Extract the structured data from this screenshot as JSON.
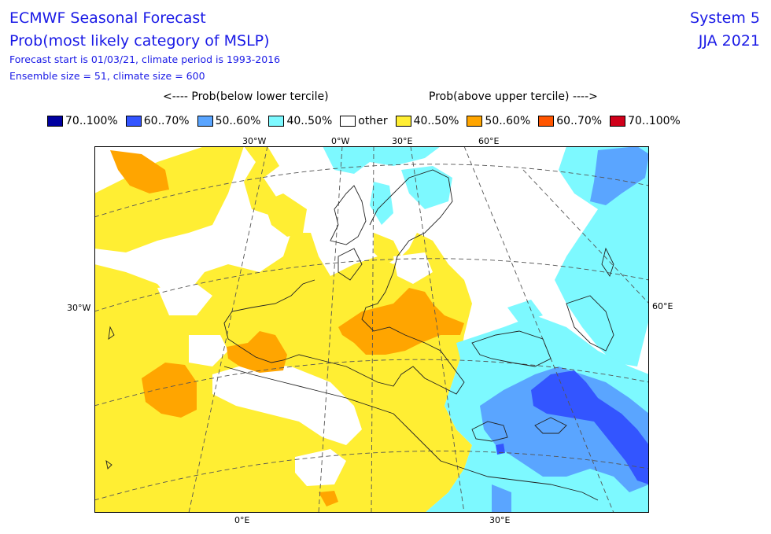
{
  "header": {
    "title1": "ECMWF Seasonal Forecast",
    "title2": "Prob(most likely category of MSLP)",
    "line3": "Forecast start is 01/03/21, climate period is 1993-2016",
    "line4": "Ensemble size = 51, climate size = 600",
    "system": "System 5",
    "season": "JJA 2021"
  },
  "legend": {
    "below_header": "<---- Prob(below lower tercile)",
    "above_header": "Prob(above upper tercile) ---->",
    "items": [
      {
        "label": "70..100%",
        "color": "#0000a0"
      },
      {
        "label": "60..70%",
        "color": "#3355ff"
      },
      {
        "label": "50..60%",
        "color": "#5aa5ff"
      },
      {
        "label": "40..50%",
        "color": "#7df9ff"
      },
      {
        "label": "other",
        "color": "#ffffff"
      },
      {
        "label": "40..50%",
        "color": "#ffee33"
      },
      {
        "label": "50..60%",
        "color": "#ffa500"
      },
      {
        "label": "60..70%",
        "color": "#ff5500"
      },
      {
        "label": "70..100%",
        "color": "#d0001a"
      }
    ]
  },
  "axes": {
    "top": [
      "30°W",
      "0°W",
      "30°E",
      "60°E"
    ],
    "bottom": [
      "0°E",
      "30°E"
    ],
    "left": "30°W",
    "right": "60°E"
  }
}
